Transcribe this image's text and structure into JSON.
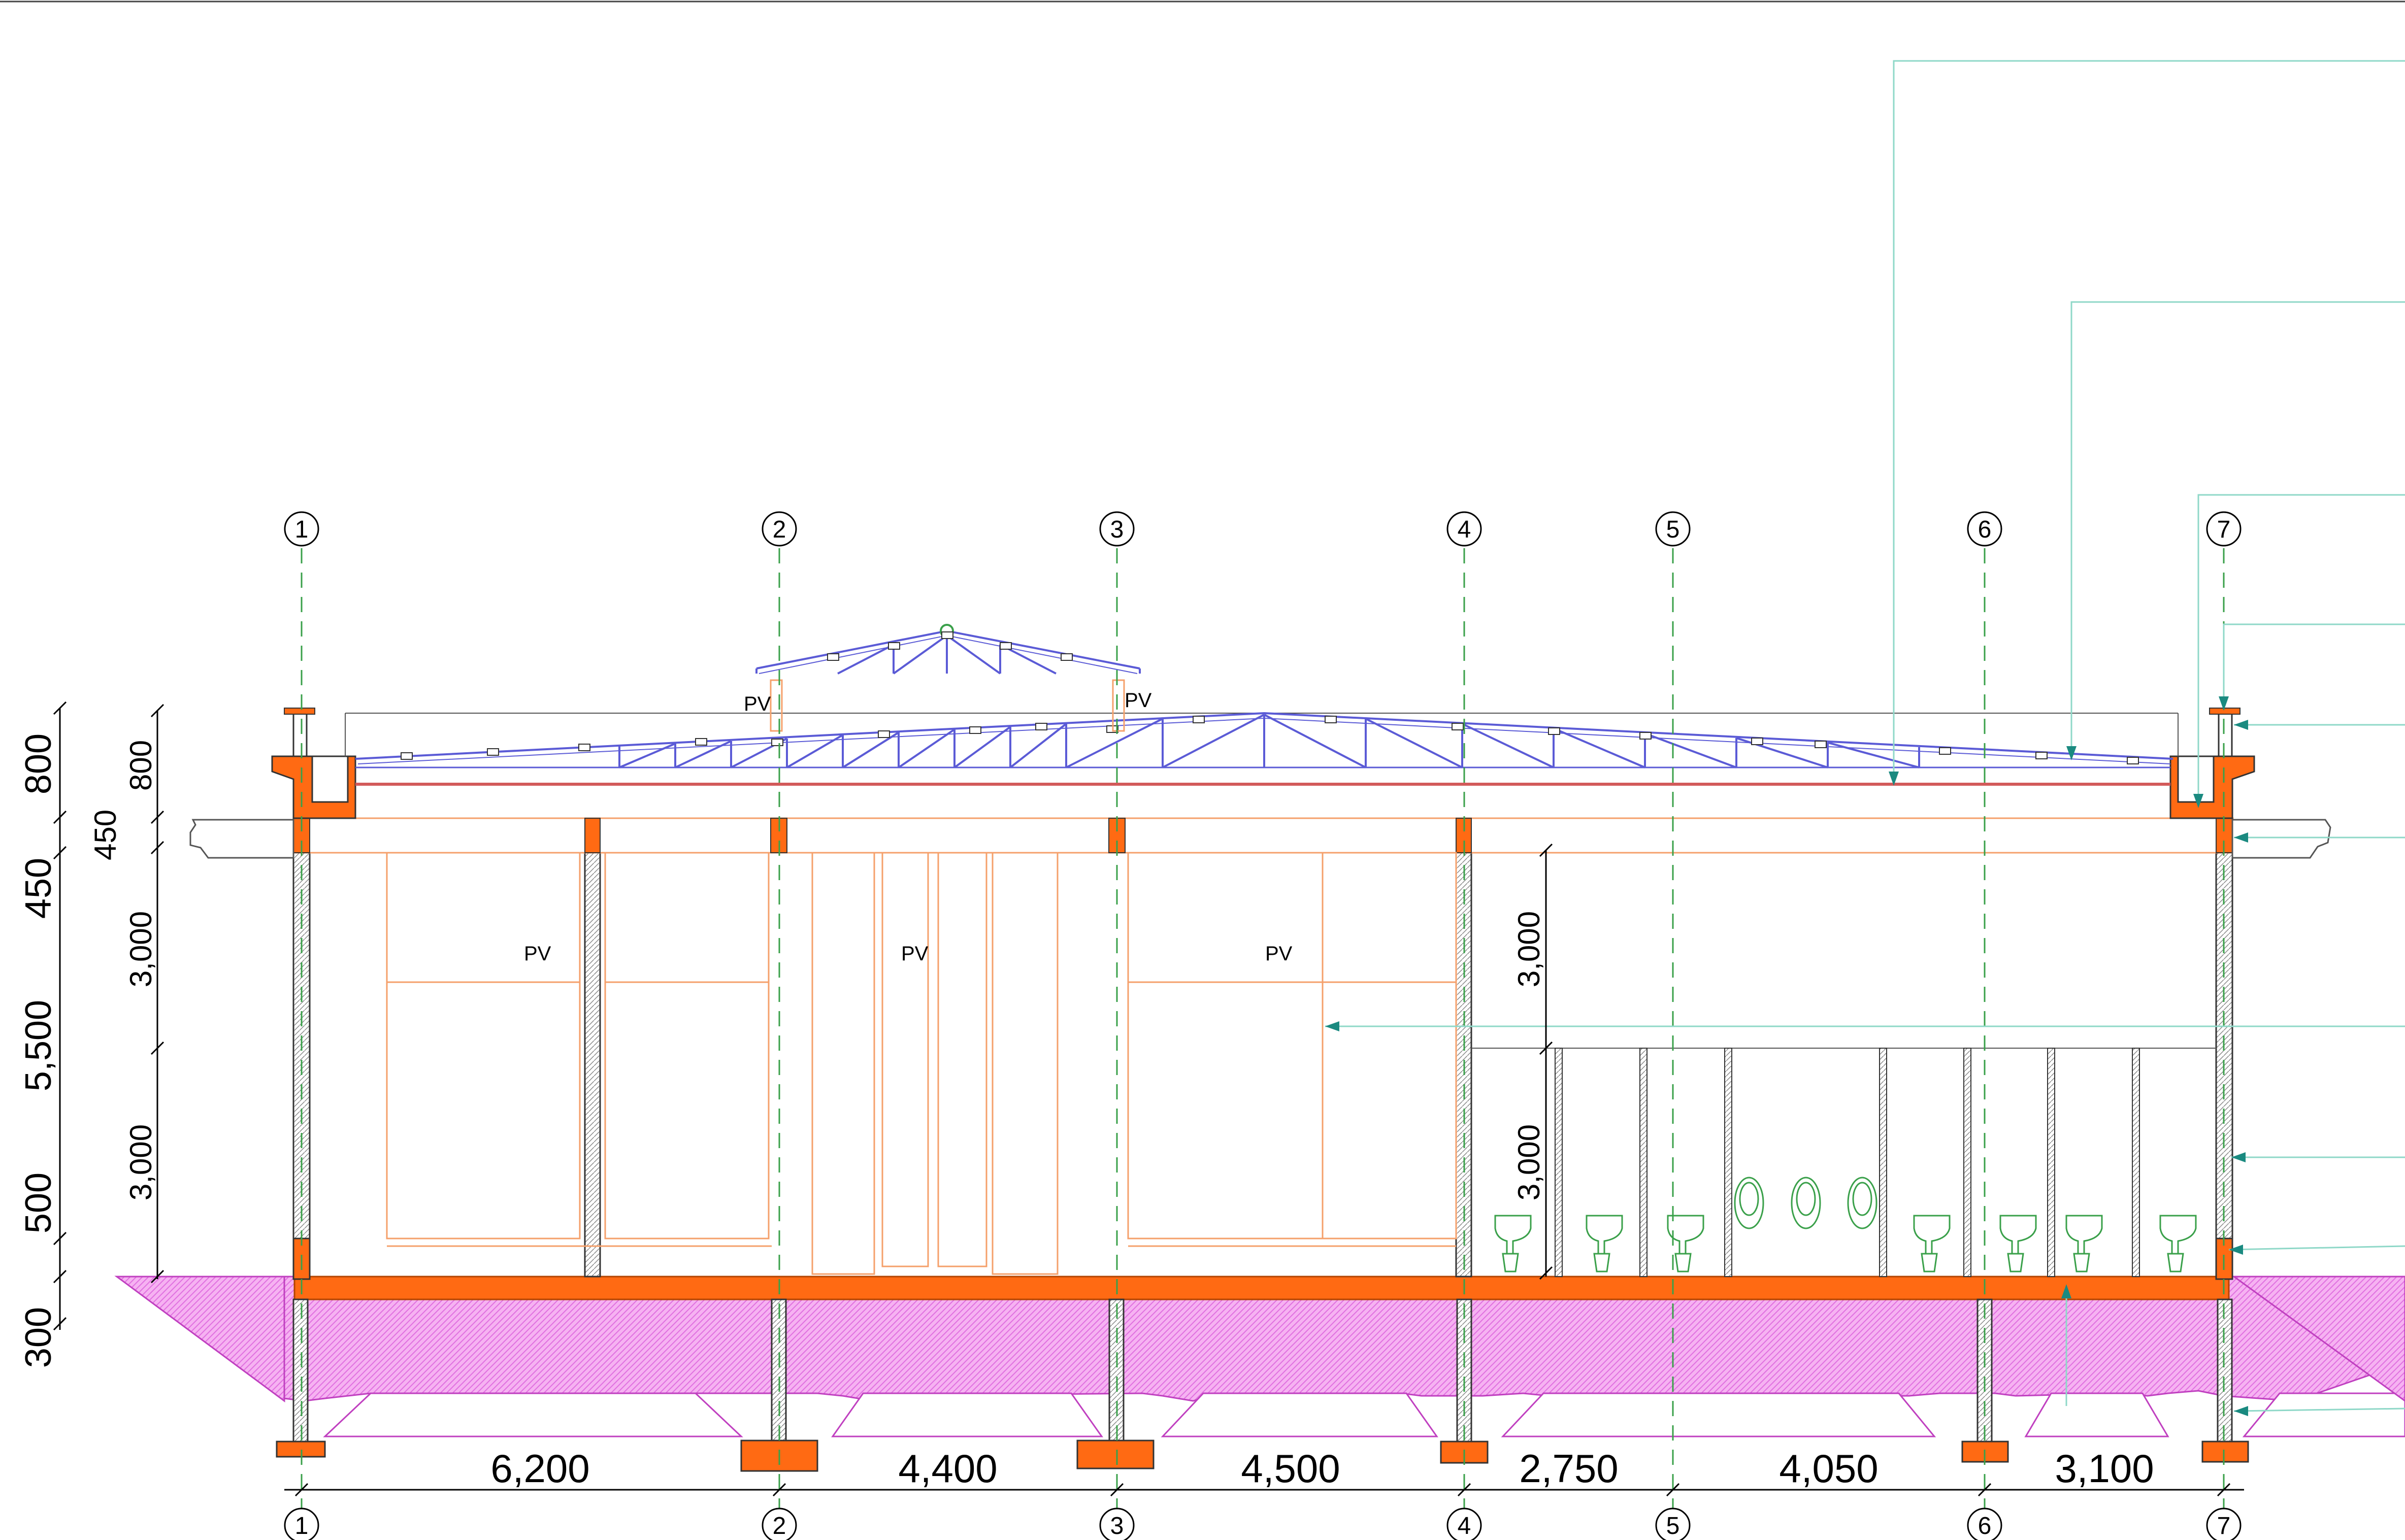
{
  "axes": [
    "1",
    "2",
    "3",
    "4",
    "5",
    "6",
    "7"
  ],
  "bottom_dimensions": [
    "6,200",
    "4,400",
    "4,500",
    "2,750",
    "4,050",
    "3,100"
  ],
  "left_dimensions_outer": [
    "800",
    "450",
    "5,500",
    "500",
    "300"
  ],
  "left_dimensions_inner": [
    "800",
    "450",
    "3,000",
    "3,000"
  ],
  "toilet_dimensions": [
    "3,000",
    "3,000"
  ],
  "pv_labels": [
    "PV",
    "PV",
    "PV",
    "PV",
    "PV"
  ],
  "colors": {
    "concrete": "#ff6a13",
    "soil": "#f29af0",
    "truss": "#5b5bd6",
    "leader": "#8fd8c8",
    "window": "#f5a06b",
    "fixture": "#3aa04a"
  }
}
